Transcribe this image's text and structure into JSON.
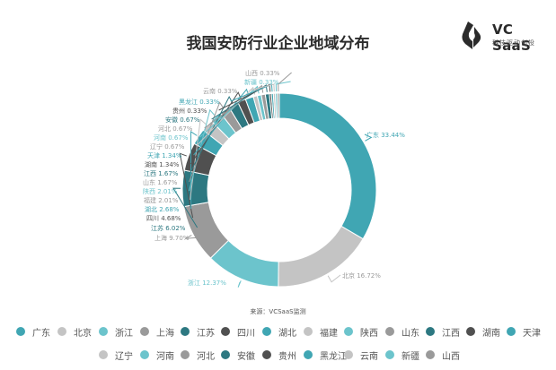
{
  "brand": {
    "name": "VC SaaS",
    "tagline": "科技驱动创投",
    "mark_color": "#2b2b2b",
    "accent_color": "#3aa7b3"
  },
  "chart_data": {
    "type": "pie",
    "variant": "donut",
    "title": "我国安防行业企业地域分布",
    "source": "来源：VCSaaS监测",
    "legend_position": "bottom",
    "slices": [
      {
        "name": "广东",
        "label": "广东 33.44%",
        "value": 33.44,
        "color": "#40a6b3"
      },
      {
        "name": "北京",
        "label": "北京 16.72%",
        "value": 16.72,
        "color": "#c4c4c4"
      },
      {
        "name": "浙江",
        "label": "浙江 12.37%",
        "value": 12.37,
        "color": "#6cc4cc"
      },
      {
        "name": "上海",
        "label": "上海 9.70%",
        "value": 9.7,
        "color": "#9a9a9a"
      },
      {
        "name": "江苏",
        "label": "江苏 6.02%",
        "value": 6.02,
        "color": "#2d7881"
      },
      {
        "name": "四川",
        "label": "四川 4.68%",
        "value": 4.68,
        "color": "#505050"
      },
      {
        "name": "湖北",
        "label": "湖北 2.68%",
        "value": 2.68,
        "color": "#40a6b3"
      },
      {
        "name": "福建",
        "label": "福建 2.01%",
        "value": 2.01,
        "color": "#c4c4c4"
      },
      {
        "name": "陕西",
        "label": "陕西 2.01%",
        "value": 2.01,
        "color": "#6cc4cc"
      },
      {
        "name": "山东",
        "label": "山东 1.67%",
        "value": 1.67,
        "color": "#9a9a9a"
      },
      {
        "name": "江西",
        "label": "江西 1.67%",
        "value": 1.67,
        "color": "#2d7881"
      },
      {
        "name": "湖南",
        "label": "湖南 1.34%",
        "value": 1.34,
        "color": "#505050"
      },
      {
        "name": "天津",
        "label": "天津 1.34%",
        "value": 1.34,
        "color": "#40a6b3"
      },
      {
        "name": "辽宁",
        "label": "辽宁 0.67%",
        "value": 0.67,
        "color": "#c4c4c4"
      },
      {
        "name": "河南",
        "label": "河南 0.67%",
        "value": 0.67,
        "color": "#6cc4cc"
      },
      {
        "name": "河北",
        "label": "河北 0.67%",
        "value": 0.67,
        "color": "#9a9a9a"
      },
      {
        "name": "安徽",
        "label": "安徽 0.67%",
        "value": 0.67,
        "color": "#2d7881"
      },
      {
        "name": "贵州",
        "label": "贵州 0.33%",
        "value": 0.33,
        "color": "#505050"
      },
      {
        "name": "黑龙江",
        "label": "黑龙江 0.33%",
        "value": 0.33,
        "color": "#40a6b3"
      },
      {
        "name": "云南",
        "label": "云南 0.33%",
        "value": 0.33,
        "color": "#c4c4c4"
      },
      {
        "name": "新疆",
        "label": "新疆 0.33%",
        "value": 0.33,
        "color": "#6cc4cc"
      },
      {
        "name": "山西",
        "label": "山西 0.33%",
        "value": 0.33,
        "color": "#9a9a9a"
      }
    ]
  }
}
